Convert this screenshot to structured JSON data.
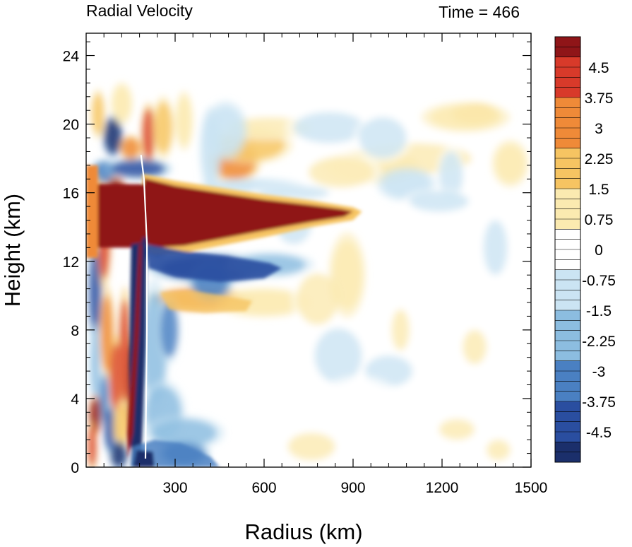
{
  "chart_data": {
    "type": "heatmap",
    "title": "Radial Velocity",
    "time_label": "Time = 466",
    "xlabel": "Radius (km)",
    "ylabel": "Height (km)",
    "xlim": [
      0,
      1500
    ],
    "ylim": [
      0,
      25.3
    ],
    "x_ticks": [
      "300",
      "600",
      "900",
      "1200",
      "1500"
    ],
    "y_ticks": [
      "0",
      "4",
      "8",
      "12",
      "16",
      "20",
      "24"
    ],
    "colorbar": {
      "min": -5.25,
      "max": 5.25,
      "step": 0.25,
      "labels": [
        "4.5",
        "3.75",
        "3",
        "2.25",
        "1.5",
        "0.75",
        "0",
        "-0.75",
        "-1.5",
        "-2.25",
        "-3",
        "-3.75",
        "-4.5"
      ],
      "colors": [
        "#1b2f6b",
        "#2a4ea0",
        "#4a80c2",
        "#8cbde0",
        "#cbe4f3",
        "#ffffff",
        "#fbeab0",
        "#f6c462",
        "#ef8a38",
        "#d83a2a",
        "#8f1518"
      ]
    },
    "features": [
      {
        "name": "upper-level outflow jet",
        "r_range": [
          190,
          900
        ],
        "z_range": [
          12.8,
          16.6
        ],
        "value": 5.25
      },
      {
        "name": "mid-level inflow below outflow",
        "r_range": [
          190,
          660
        ],
        "z_range": [
          10.5,
          13
        ],
        "value": -4.5
      },
      {
        "name": "eyewall inflow column",
        "r_range": [
          150,
          200
        ],
        "z_range": [
          0,
          13.5
        ],
        "value": -5.25
      },
      {
        "name": "near-surface inflow",
        "r_range": [
          150,
          450
        ],
        "z_range": [
          0,
          1.5
        ],
        "value": -3
      },
      {
        "name": "mid-level outflow band",
        "r_range": [
          250,
          560
        ],
        "z_range": [
          8.8,
          10.5
        ],
        "value": 2.5
      }
    ]
  }
}
